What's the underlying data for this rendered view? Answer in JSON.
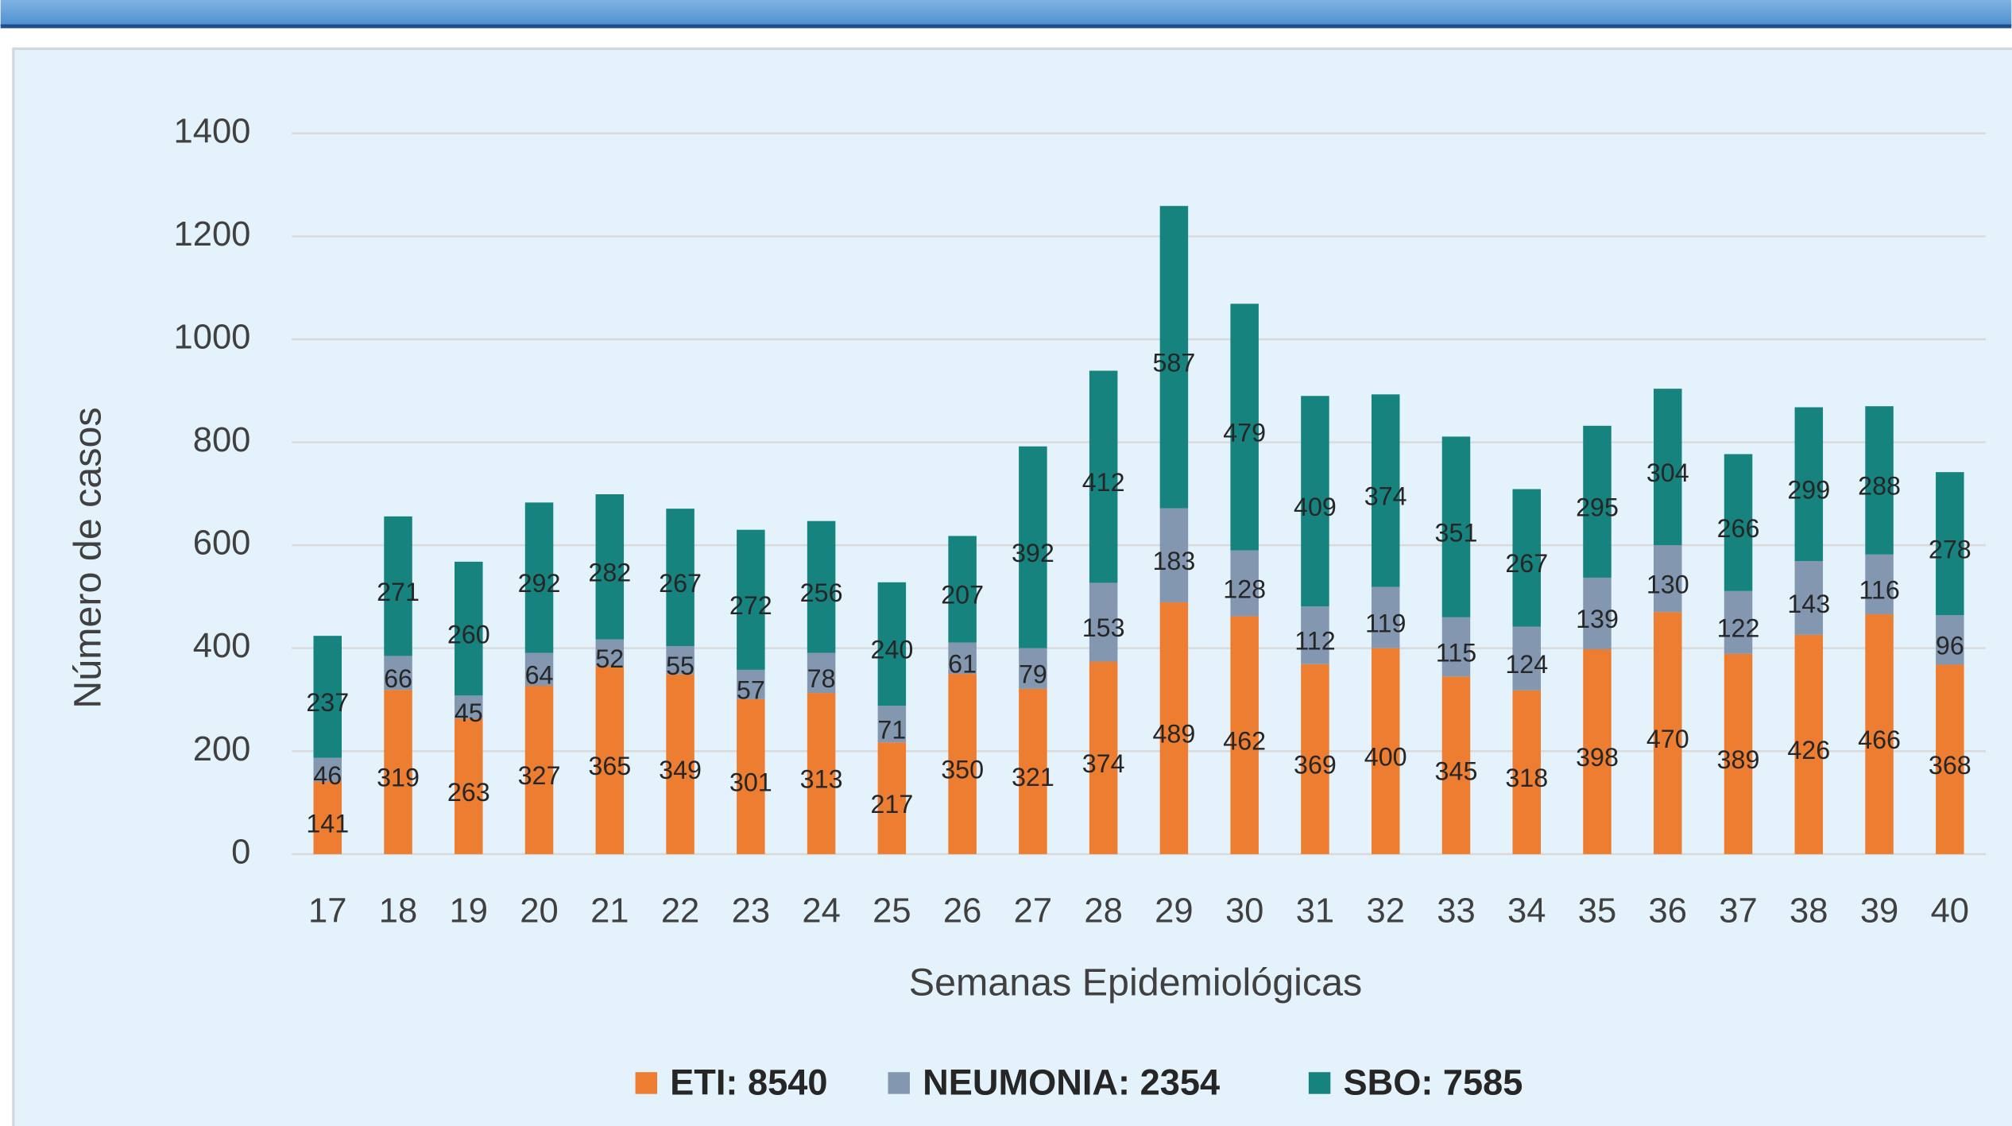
{
  "chart_data": {
    "type": "stacked_bar",
    "x_label": "Semanas Epidemiológicas",
    "y_label": "Número de casos",
    "categories": [
      "17",
      "18",
      "19",
      "20",
      "21",
      "22",
      "23",
      "24",
      "25",
      "26",
      "27",
      "28",
      "29",
      "30",
      "31",
      "32",
      "33",
      "34",
      "35",
      "36",
      "37",
      "38",
      "39",
      "40"
    ],
    "series": [
      {
        "name": "ETI: 8540",
        "color": "#ed7d31",
        "values": [
          141,
          319,
          263,
          327,
          365,
          349,
          301,
          313,
          217,
          350,
          321,
          374,
          489,
          462,
          369,
          400,
          345,
          318,
          398,
          470,
          389,
          426,
          466,
          368
        ]
      },
      {
        "name": "NEUMONIA: 2354",
        "color": "#8497b0",
        "values": [
          46,
          66,
          45,
          64,
          52,
          55,
          57,
          78,
          71,
          61,
          79,
          153,
          183,
          128,
          112,
          119,
          115,
          124,
          139,
          130,
          122,
          143,
          116,
          96
        ]
      },
      {
        "name": "SBO: 7585",
        "color": "#16837e",
        "values": [
          237,
          271,
          260,
          292,
          282,
          267,
          272,
          256,
          240,
          207,
          392,
          412,
          587,
          479,
          409,
          374,
          351,
          267,
          295,
          304,
          266,
          299,
          288,
          278
        ]
      }
    ],
    "ylim": [
      0,
      1400
    ],
    "yticks": [
      0,
      200,
      400,
      600,
      800,
      1000,
      1200,
      1400
    ],
    "grid": true,
    "legend": "bottom"
  }
}
